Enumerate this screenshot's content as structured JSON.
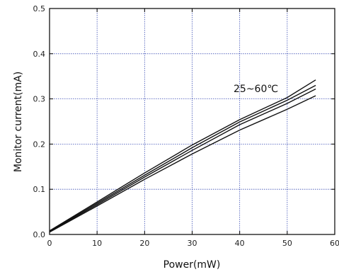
{
  "chart_data": {
    "type": "line",
    "title": "",
    "xlabel": "Power(mW)",
    "ylabel": "Monitor current(mA)",
    "xlim": [
      0,
      60
    ],
    "ylim": [
      0.0,
      0.5
    ],
    "xticks": [
      0,
      10,
      20,
      30,
      40,
      50,
      60
    ],
    "yticks": [
      0.0,
      0.1,
      0.2,
      0.3,
      0.4,
      0.5
    ],
    "xtick_labels": [
      "0",
      "10",
      "20",
      "30",
      "40",
      "50",
      "60"
    ],
    "ytick_labels": [
      "0.0",
      "0.1",
      "0.2",
      "0.3",
      "0.4",
      "0.5"
    ],
    "grid": true,
    "annotation": "25~60℃",
    "series": [
      {
        "x": [
          0,
          10,
          20,
          30,
          40,
          50,
          56
        ],
        "y": [
          0.008,
          0.072,
          0.136,
          0.198,
          0.254,
          0.303,
          0.342
        ]
      },
      {
        "x": [
          0,
          10,
          20,
          30,
          40,
          50,
          56
        ],
        "y": [
          0.007,
          0.069,
          0.131,
          0.192,
          0.249,
          0.297,
          0.33
        ]
      },
      {
        "x": [
          0,
          10,
          20,
          30,
          40,
          50,
          56
        ],
        "y": [
          0.006,
          0.066,
          0.127,
          0.186,
          0.243,
          0.29,
          0.322
        ]
      },
      {
        "x": [
          0,
          10,
          20,
          30,
          40,
          50,
          56
        ],
        "y": [
          0.005,
          0.063,
          0.122,
          0.178,
          0.231,
          0.277,
          0.307
        ]
      }
    ]
  }
}
